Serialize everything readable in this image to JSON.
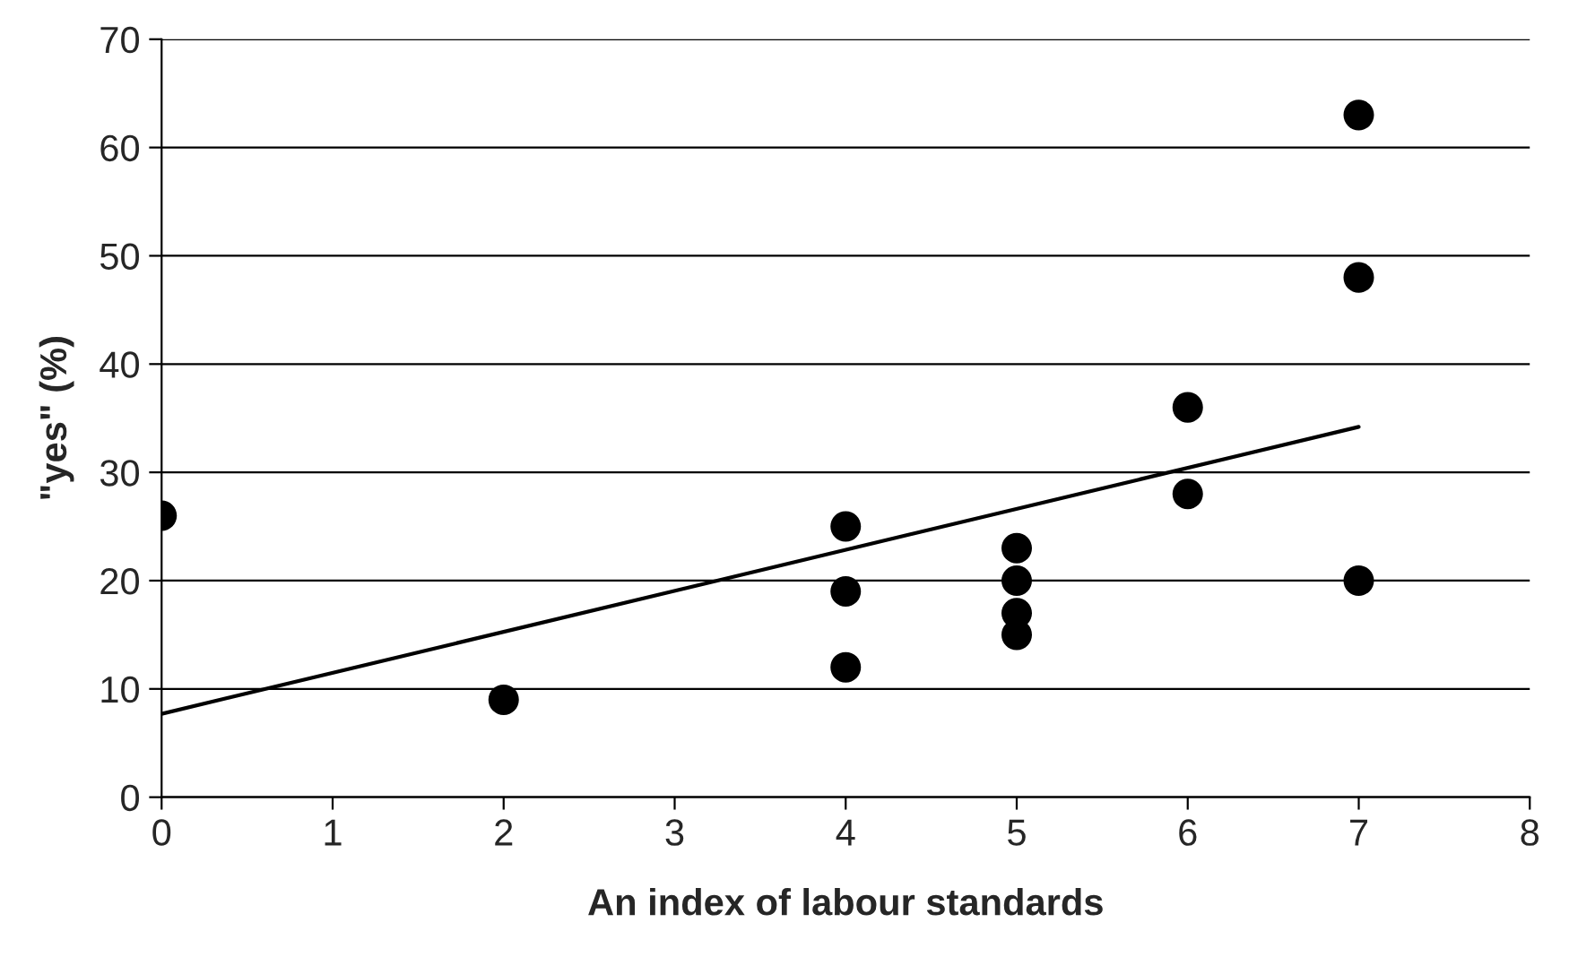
{
  "chart_data": {
    "type": "scatter",
    "xlabel": "An index of labour standards",
    "ylabel": "\"yes\" (%)",
    "xlim": [
      0,
      8
    ],
    "xticks": [
      0,
      1,
      2,
      3,
      4,
      5,
      6,
      7,
      8
    ],
    "ylim": [
      0,
      70
    ],
    "yticks": [
      0,
      10,
      20,
      30,
      40,
      50,
      60,
      70
    ],
    "grid": "y",
    "series": [
      {
        "marker": "circle",
        "color": "#000000",
        "x": [
          0,
          2,
          4,
          4,
          4,
          5,
          5,
          5,
          5,
          6,
          6,
          7,
          7,
          7
        ],
        "values": [
          26,
          9,
          25,
          19,
          12,
          23,
          20,
          17,
          15,
          36,
          28,
          63,
          48,
          20
        ]
      },
      {
        "type": "line",
        "marker": "none",
        "color": "#000000",
        "x": [
          0,
          7
        ],
        "values": [
          7.7,
          34.2
        ]
      }
    ]
  }
}
